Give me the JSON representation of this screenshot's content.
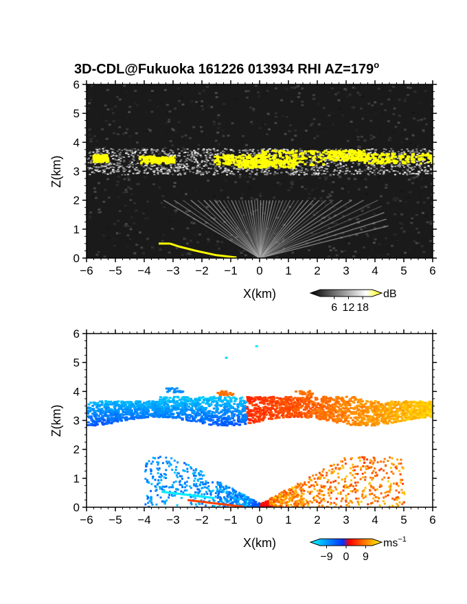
{
  "chart_data": [
    {
      "type": "heatmap",
      "title": "3D-CDL@Fukuoka 161226 013934 RHI AZ=179",
      "title_superscript": "o",
      "xlabel": "X(km)",
      "ylabel": "Z(km)",
      "xlim": [
        -6,
        6
      ],
      "ylim": [
        0,
        6
      ],
      "xticks": [
        "-6",
        "-5",
        "-4",
        "-3",
        "-2",
        "-1",
        "0",
        "1",
        "2",
        "3",
        "4",
        "5",
        "6"
      ],
      "yticks": [
        "0",
        "1",
        "2",
        "3",
        "4",
        "5",
        "6"
      ],
      "quantity": "backscatter intensity",
      "colorbar": {
        "unit": "dB",
        "ticks": [
          "6",
          "12",
          "18"
        ],
        "tick_values": [
          6,
          12,
          18
        ],
        "range": [
          0,
          22
        ],
        "colors": [
          "#000000",
          "#ffffff",
          "#ffff00"
        ]
      },
      "features": [
        {
          "name": "cloud layer",
          "x_range": [
            -6,
            6
          ],
          "z_range": [
            2.9,
            3.8
          ],
          "max_dB": 22
        },
        {
          "name": "aerosol fan",
          "x_range": [
            -3.5,
            4.5
          ],
          "z_range": [
            0,
            2.0
          ],
          "max_dB": 10
        },
        {
          "name": "surface echo",
          "x_range": [
            -3.5,
            -0.5
          ],
          "z_range": [
            0,
            0.5
          ],
          "max_dB": 22
        }
      ]
    },
    {
      "type": "heatmap",
      "xlabel": "X(km)",
      "ylabel": "Z(km)",
      "xlim": [
        -6,
        6
      ],
      "ylim": [
        0,
        6
      ],
      "xticks": [
        "-6",
        "-5",
        "-4",
        "-3",
        "-2",
        "-1",
        "0",
        "1",
        "2",
        "3",
        "4",
        "5",
        "6"
      ],
      "yticks": [
        "0",
        "1",
        "2",
        "3",
        "4",
        "5",
        "6"
      ],
      "quantity": "Doppler velocity",
      "colorbar": {
        "unit": "ms",
        "unit_superscript": "−1",
        "ticks": [
          "−9",
          "0",
          "9"
        ],
        "tick_values": [
          -9,
          0,
          9
        ],
        "range": [
          -12,
          12
        ],
        "colors": [
          "#00ffff",
          "#0033ff",
          "#ff0000",
          "#ffff00"
        ]
      },
      "features": [
        {
          "name": "cloud layer",
          "x_range": [
            -6,
            6
          ],
          "z_range": [
            3.0,
            4.1
          ],
          "velocity_left": -8,
          "velocity_right": 10
        },
        {
          "name": "lower returns",
          "x_range": [
            -4,
            5
          ],
          "z_range": [
            0,
            1.8
          ],
          "velocity_left": -9,
          "velocity_right": 10
        }
      ]
    }
  ]
}
